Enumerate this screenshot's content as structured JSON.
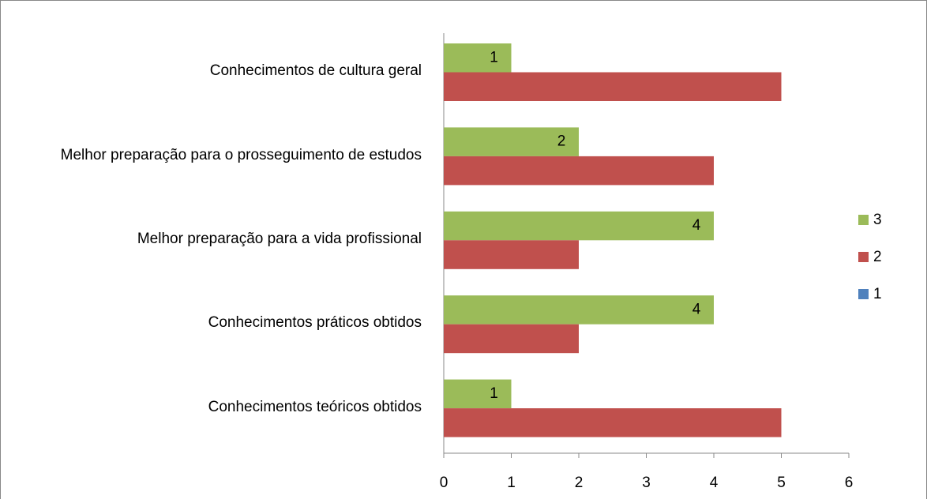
{
  "chart_data": {
    "type": "barh",
    "categories": [
      "Conhecimentos de cultura geral",
      "Melhor preparação para o prosseguimento de estudos",
      "Melhor preparação para a vida profissional",
      "Conhecimentos práticos obtidos",
      "Conhecimentos teóricos obtidos"
    ],
    "series": [
      {
        "name": "1",
        "color": "#4f81bd",
        "values": [
          0,
          0,
          0,
          0,
          0
        ]
      },
      {
        "name": "2",
        "color": "#c0504d",
        "values": [
          5,
          4,
          2,
          2,
          5
        ]
      },
      {
        "name": "3",
        "color": "#9bbb59",
        "values": [
          1,
          2,
          4,
          4,
          1
        ],
        "data_labels": true
      }
    ],
    "xlim": [
      0,
      6
    ],
    "xticks": [
      0,
      1,
      2,
      3,
      4,
      5,
      6
    ],
    "legend": "right"
  }
}
